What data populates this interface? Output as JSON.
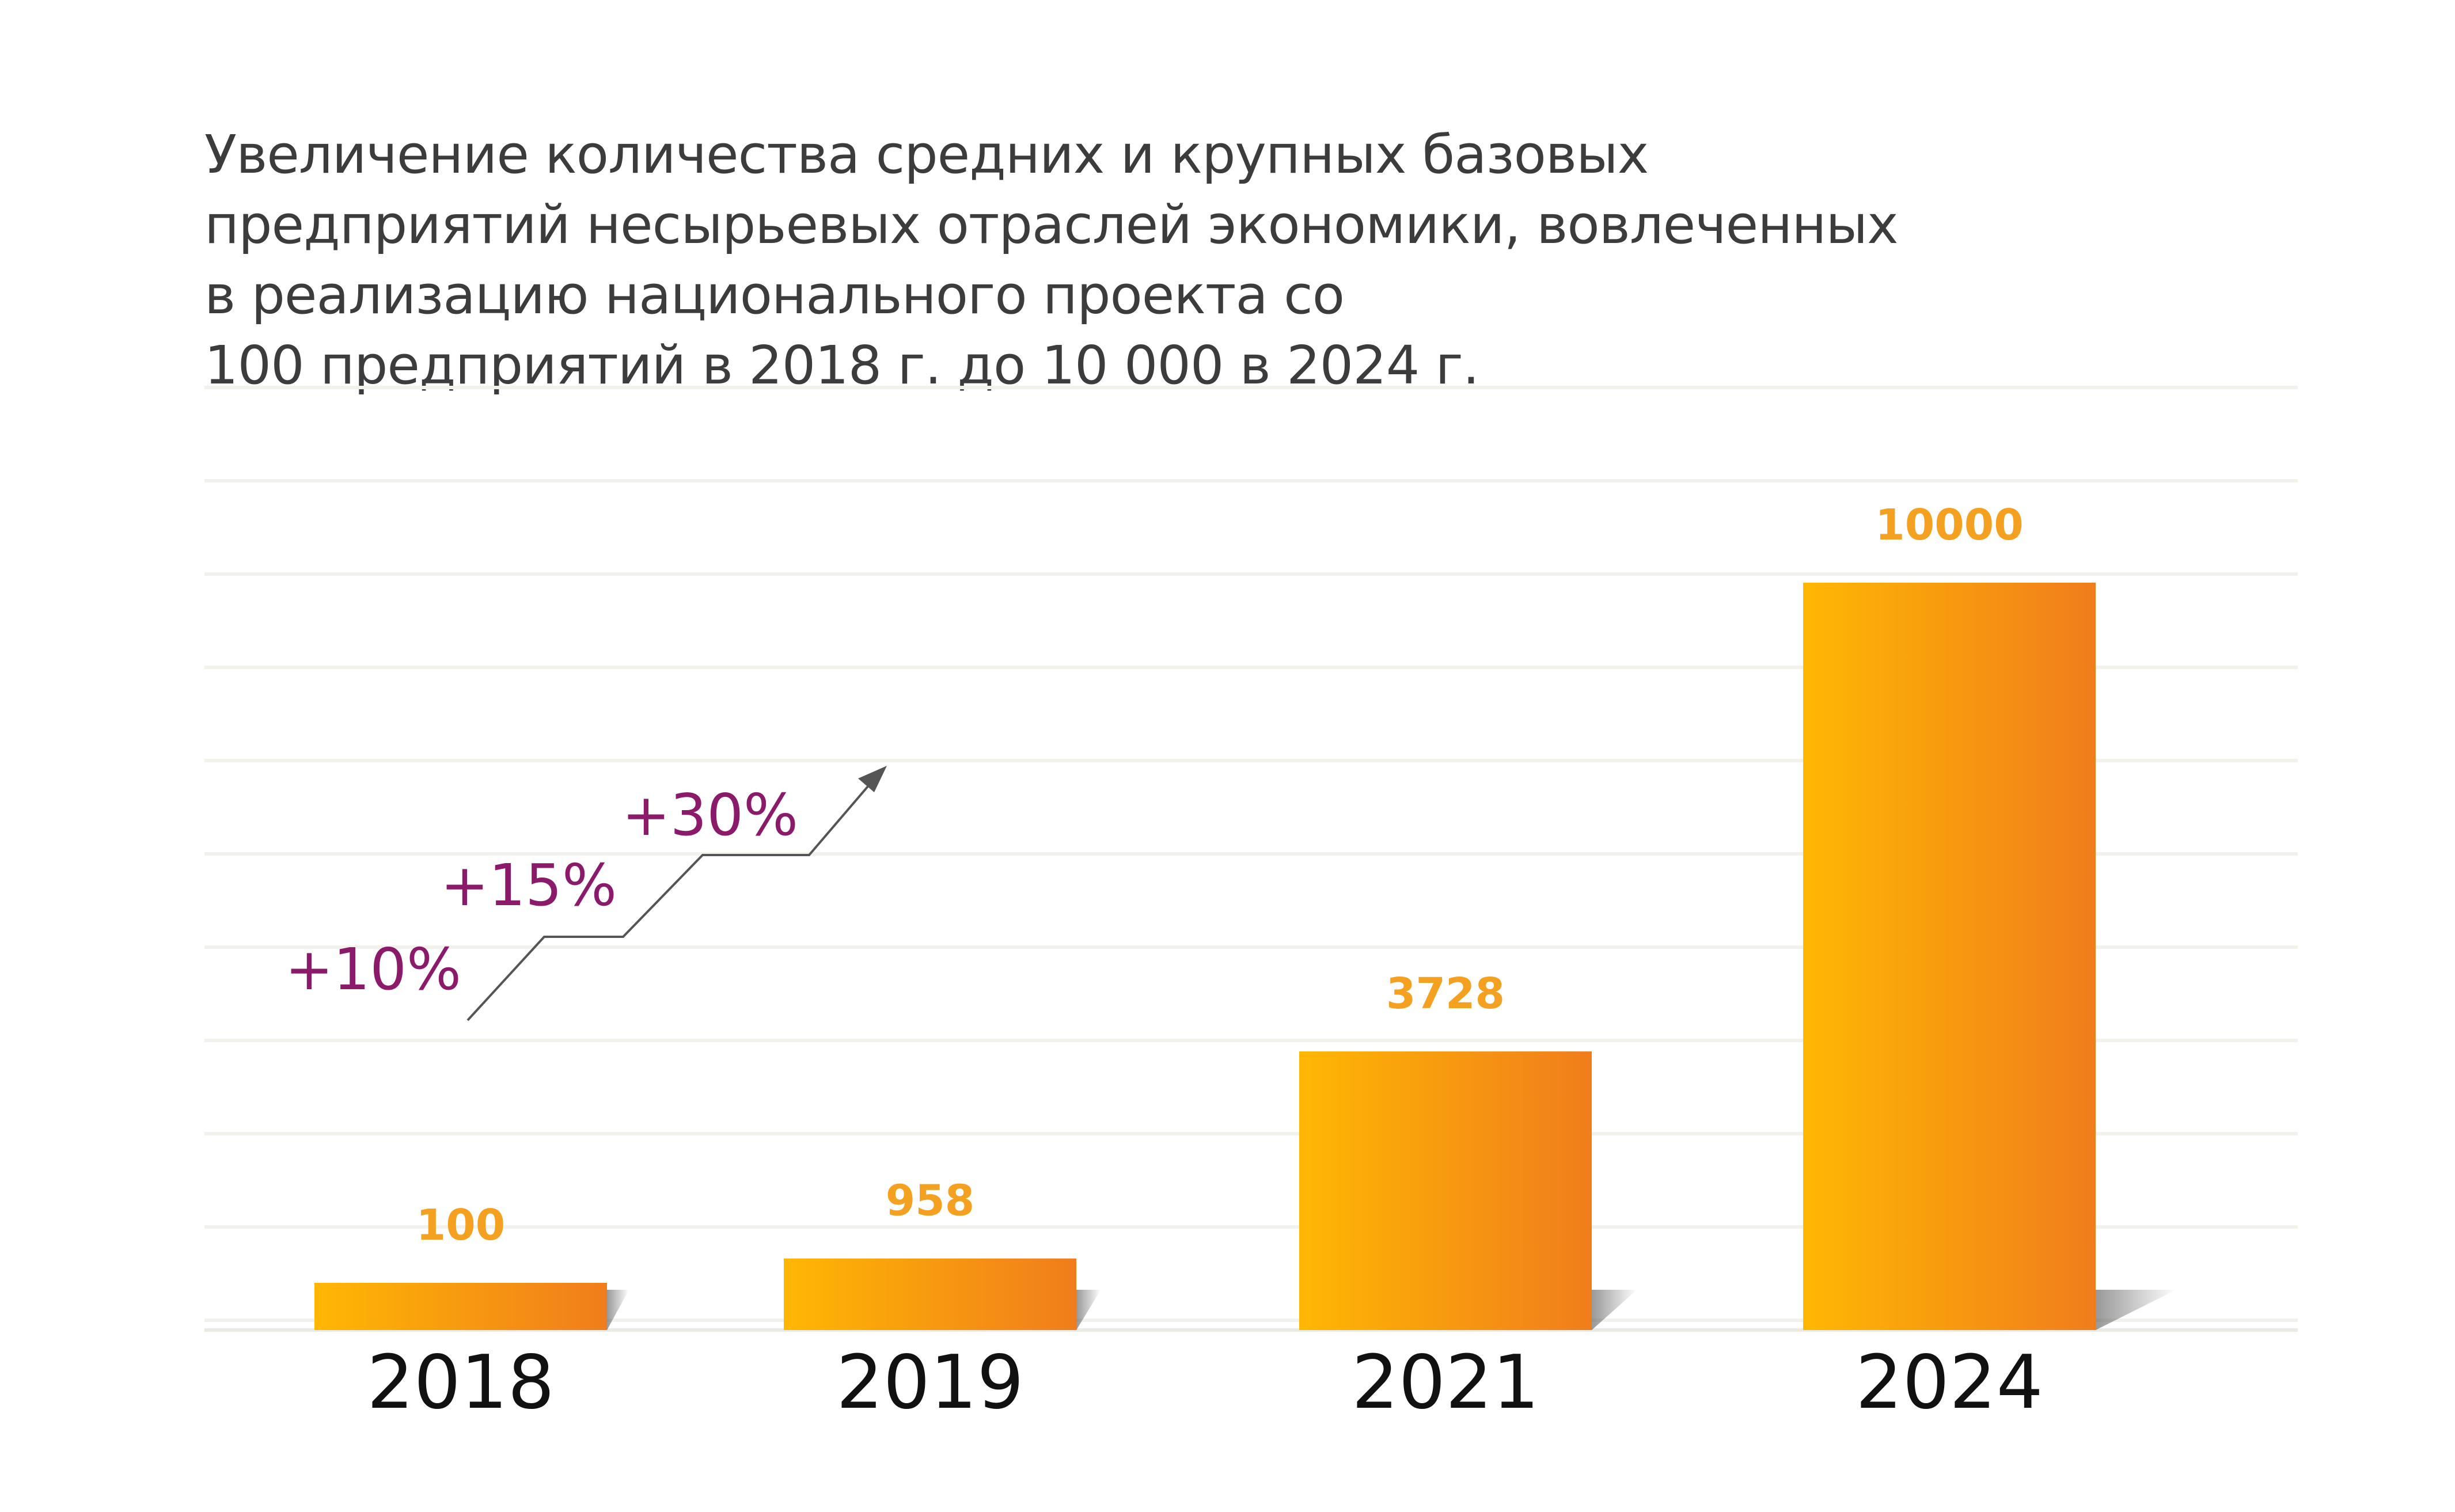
{
  "title_lines": [
    "Увеличение количества средних и крупных базовых",
    "предприятий несырьевых отраслей экономики, вовлеченных",
    "в реализацию национального проекта со",
    "100 предприятий в 2018 г. до 10 000 в 2024 г."
  ],
  "growth_labels": [
    "+10%",
    "+15%",
    "+30%"
  ],
  "colors": {
    "bar_start": "#FFB703",
    "bar_end": "#F07D1C",
    "value_label": "#F4A020",
    "growth_label": "#8C1A6A",
    "title": "#3C3C3C",
    "grid": "#F2F2EA",
    "arrow": "#555555"
  },
  "chart_data": {
    "type": "bar",
    "categories": [
      "2018",
      "2019",
      "2021",
      "2024"
    ],
    "values": [
      100,
      958,
      3728,
      10000
    ],
    "title": "Увеличение количества средних и крупных базовых предприятий несырьевых отраслей экономики, вовлеченных в реализацию национального проекта со 100 предприятий в 2018 г. до 10 000 в 2024 г.",
    "xlabel": "",
    "ylabel": "",
    "grid": true,
    "value_labels": [
      "100",
      "958",
      "3728",
      "10000"
    ]
  }
}
